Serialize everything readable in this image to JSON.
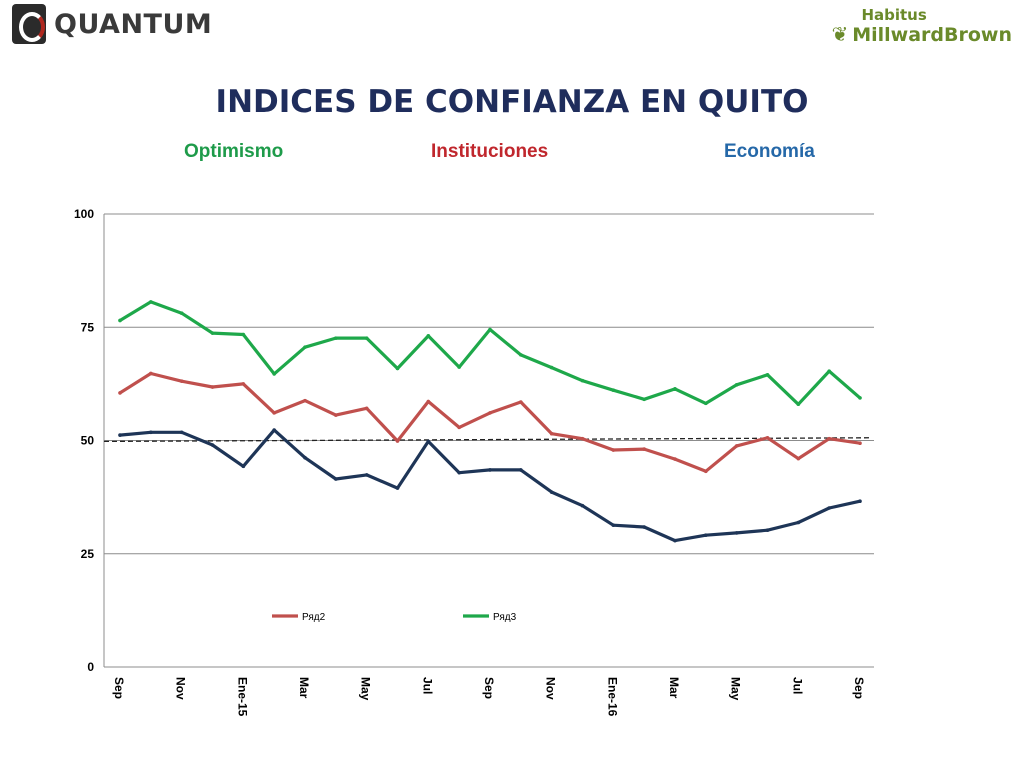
{
  "header": {
    "left_logo_text": "QUANTUM",
    "right_logo_top": "Habitus",
    "right_logo_bottom": "MillwardBrown",
    "left_logo_icon": "quantum-mark-icon",
    "right_logo_icon": "heart-icon"
  },
  "title": "INDICES DE CONFIANZA EN QUITO",
  "subtitles": {
    "optimismo": "Optimismo",
    "instituciones": "Instituciones",
    "economia": "Economía"
  },
  "chart_data": {
    "type": "line",
    "x": [
      "Sep",
      "",
      "Nov",
      "",
      "Ene-15",
      "",
      "Mar",
      "",
      "May",
      "",
      "Jul",
      "",
      "Sep",
      "",
      "Nov",
      "",
      "Ene-16",
      "",
      "Mar",
      "",
      "May",
      "",
      "Jul",
      "",
      "Sep"
    ],
    "tick_labels": [
      "Sep",
      "Nov",
      "Ene-15",
      "Mar",
      "May",
      "Jul",
      "Sep",
      "Nov",
      "Ene-16",
      "Mar",
      "May",
      "Jul",
      "Sep"
    ],
    "ylim": [
      0,
      100
    ],
    "yticks": [
      0,
      25,
      50,
      75,
      100
    ],
    "grid": true,
    "legend_placement": "bottom-center",
    "series": [
      {
        "name": "",
        "color": "#1e3557",
        "values": [
          51.2,
          51.8,
          51.8,
          49.0,
          44.3,
          52.3,
          46.2,
          41.5,
          42.4,
          39.5,
          49.8,
          42.9,
          43.5,
          43.5,
          38.6,
          35.6,
          31.3,
          30.9,
          27.9,
          29.1,
          29.6,
          30.2,
          31.9,
          35.1,
          36.6
        ]
      },
      {
        "name": "Ряд2",
        "color": "#c0504d",
        "values": [
          60.5,
          64.8,
          63.1,
          61.8,
          62.5,
          56.1,
          58.8,
          55.6,
          57.1,
          49.9,
          58.6,
          52.9,
          56.1,
          58.5,
          51.5,
          50.4,
          47.9,
          48.1,
          45.9,
          43.2,
          48.8,
          50.6,
          46.0,
          50.4,
          49.4
        ]
      },
      {
        "name": "Ряд3",
        "color": "#1ea84a",
        "values": [
          76.5,
          80.6,
          78.1,
          73.7,
          73.4,
          64.7,
          70.6,
          72.6,
          72.6,
          65.9,
          73.1,
          66.2,
          74.5,
          68.9,
          66.1,
          63.2,
          61.1,
          59.1,
          61.4,
          58.2,
          62.3,
          64.5,
          58.0,
          65.3,
          59.4
        ]
      }
    ],
    "reference_line": {
      "style": "dashed",
      "color": "#222222",
      "values": [
        49.8,
        50.6
      ]
    }
  }
}
